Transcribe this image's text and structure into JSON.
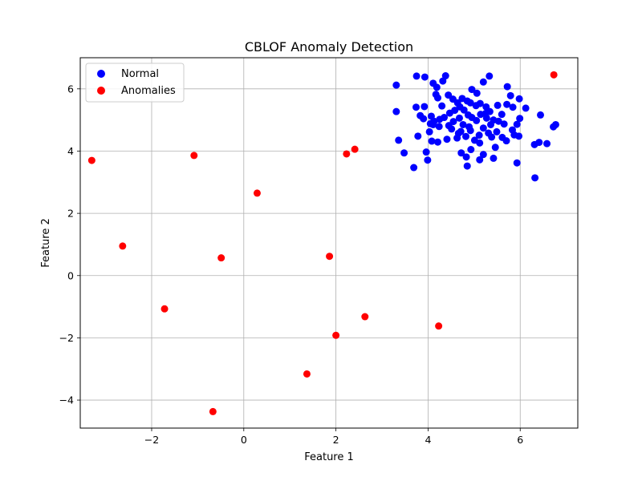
{
  "chart_data": {
    "type": "scatter",
    "title": "CBLOF Anomaly Detection",
    "xlabel": "Feature 1",
    "ylabel": "Feature 2",
    "xlim": [
      -3.55,
      7.25
    ],
    "ylim": [
      -4.9,
      7.0
    ],
    "xticks": [
      -2,
      0,
      2,
      4,
      6
    ],
    "yticks": [
      -4,
      -2,
      0,
      2,
      4,
      6
    ],
    "xtick_labels": [
      "−2",
      "0",
      "2",
      "4",
      "6"
    ],
    "ytick_labels": [
      "−4",
      "−2",
      "0",
      "2",
      "4",
      "6"
    ],
    "grid": true,
    "legend_position": "top-left",
    "series": [
      {
        "name": "Normal",
        "color": "#0000ff",
        "points": [
          [
            3.31,
            6.12
          ],
          [
            3.75,
            6.41
          ],
          [
            3.93,
            6.38
          ],
          [
            4.11,
            6.18
          ],
          [
            4.19,
            6.05
          ],
          [
            4.32,
            6.25
          ],
          [
            4.38,
            6.42
          ],
          [
            5.2,
            6.22
          ],
          [
            5.33,
            6.41
          ],
          [
            5.72,
            6.07
          ],
          [
            5.98,
            5.68
          ],
          [
            5.79,
            5.78
          ],
          [
            3.31,
            5.27
          ],
          [
            3.74,
            5.41
          ],
          [
            3.92,
            5.43
          ],
          [
            4.21,
            5.71
          ],
          [
            4.17,
            5.82
          ],
          [
            4.3,
            5.45
          ],
          [
            4.44,
            5.8
          ],
          [
            4.54,
            5.67
          ],
          [
            4.64,
            5.55
          ],
          [
            4.74,
            5.69
          ],
          [
            4.85,
            5.61
          ],
          [
            4.95,
            5.98
          ],
          [
            5.06,
            5.86
          ],
          [
            5.13,
            5.53
          ],
          [
            5.26,
            5.42
          ],
          [
            5.34,
            5.27
          ],
          [
            5.51,
            5.47
          ],
          [
            5.71,
            5.5
          ],
          [
            5.84,
            5.41
          ],
          [
            6.12,
            5.38
          ],
          [
            3.83,
            5.14
          ],
          [
            3.9,
            5.04
          ],
          [
            4.07,
            5.12
          ],
          [
            4.13,
            4.96
          ],
          [
            4.24,
            4.79
          ],
          [
            4.45,
            4.82
          ],
          [
            4.55,
            4.95
          ],
          [
            4.68,
            5.06
          ],
          [
            4.76,
            4.85
          ],
          [
            4.87,
            5.16
          ],
          [
            4.95,
            5.08
          ],
          [
            5.05,
            4.98
          ],
          [
            5.14,
            5.18
          ],
          [
            5.25,
            5.21
          ],
          [
            5.42,
            5.0
          ],
          [
            5.53,
            4.96
          ],
          [
            5.65,
            4.87
          ],
          [
            5.83,
            4.68
          ],
          [
            5.93,
            4.86
          ],
          [
            5.99,
            5.05
          ],
          [
            6.44,
            5.16
          ],
          [
            3.36,
            4.35
          ],
          [
            3.78,
            4.48
          ],
          [
            4.03,
            4.62
          ],
          [
            4.08,
            4.32
          ],
          [
            4.21,
            4.29
          ],
          [
            4.41,
            4.38
          ],
          [
            4.51,
            4.71
          ],
          [
            4.63,
            4.42
          ],
          [
            4.71,
            4.63
          ],
          [
            4.82,
            4.47
          ],
          [
            4.92,
            4.66
          ],
          [
            5.01,
            4.35
          ],
          [
            5.11,
            4.51
          ],
          [
            5.2,
            4.74
          ],
          [
            5.31,
            4.58
          ],
          [
            5.38,
            4.45
          ],
          [
            5.49,
            4.62
          ],
          [
            5.61,
            4.44
          ],
          [
            5.7,
            4.33
          ],
          [
            5.87,
            4.52
          ],
          [
            5.97,
            4.48
          ],
          [
            6.31,
            4.21
          ],
          [
            6.41,
            4.28
          ],
          [
            6.58,
            4.24
          ],
          [
            6.72,
            4.78
          ],
          [
            6.77,
            4.85
          ],
          [
            3.48,
            3.94
          ],
          [
            3.96,
            3.97
          ],
          [
            3.99,
            3.71
          ],
          [
            4.72,
            3.94
          ],
          [
            4.83,
            3.81
          ],
          [
            4.93,
            4.05
          ],
          [
            5.12,
            3.72
          ],
          [
            5.2,
            3.89
          ],
          [
            5.42,
            3.77
          ],
          [
            5.46,
            4.12
          ],
          [
            4.85,
            3.52
          ],
          [
            3.69,
            3.47
          ],
          [
            5.93,
            3.62
          ],
          [
            6.32,
            3.14
          ],
          [
            4.11,
            4.85
          ],
          [
            4.35,
            5.08
          ],
          [
            4.58,
            5.31
          ],
          [
            4.66,
            4.57
          ],
          [
            4.89,
            4.78
          ],
          [
            5.04,
            5.46
          ],
          [
            5.27,
            5.06
          ],
          [
            5.12,
            4.26
          ],
          [
            4.47,
            5.22
          ],
          [
            5.6,
            5.18
          ],
          [
            4.78,
            5.32
          ],
          [
            4.25,
            5.02
          ],
          [
            5.36,
            4.85
          ],
          [
            4.92,
            5.55
          ],
          [
            4.05,
            4.88
          ],
          [
            4.69,
            5.42
          ]
        ]
      },
      {
        "name": "Anomalies",
        "color": "#ff0000",
        "points": [
          [
            6.73,
            6.45
          ],
          [
            -3.3,
            3.7
          ],
          [
            -1.08,
            3.86
          ],
          [
            2.23,
            3.91
          ],
          [
            2.41,
            4.06
          ],
          [
            0.29,
            2.65
          ],
          [
            -2.63,
            0.95
          ],
          [
            -0.49,
            0.57
          ],
          [
            1.86,
            0.62
          ],
          [
            -1.72,
            -1.07
          ],
          [
            2.63,
            -1.32
          ],
          [
            4.23,
            -1.62
          ],
          [
            2.0,
            -1.92
          ],
          [
            1.37,
            -3.16
          ],
          [
            -0.67,
            -4.37
          ]
        ]
      }
    ]
  }
}
